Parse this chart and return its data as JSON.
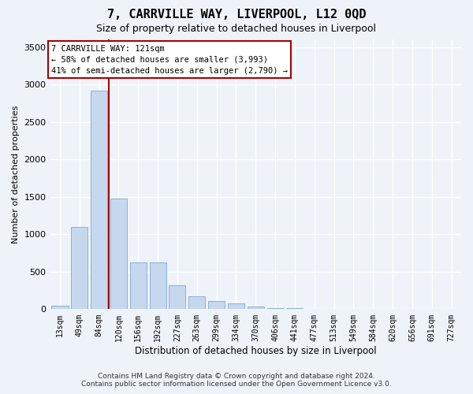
{
  "title": "7, CARRVILLE WAY, LIVERPOOL, L12 0QD",
  "subtitle": "Size of property relative to detached houses in Liverpool",
  "xlabel": "Distribution of detached houses by size in Liverpool",
  "ylabel": "Number of detached properties",
  "footer_line1": "Contains HM Land Registry data © Crown copyright and database right 2024.",
  "footer_line2": "Contains public sector information licensed under the Open Government Licence v3.0.",
  "annotation_line1": "7 CARRVILLE WAY: 121sqm",
  "annotation_line2": "← 58% of detached houses are smaller (3,993)",
  "annotation_line3": "41% of semi-detached houses are larger (2,790) →",
  "bin_labels": [
    "13sqm",
    "49sqm",
    "84sqm",
    "120sqm",
    "156sqm",
    "192sqm",
    "227sqm",
    "263sqm",
    "299sqm",
    "334sqm",
    "370sqm",
    "406sqm",
    "441sqm",
    "477sqm",
    "513sqm",
    "549sqm",
    "584sqm",
    "620sqm",
    "656sqm",
    "691sqm",
    "727sqm"
  ],
  "bar_values": [
    50,
    1100,
    2920,
    1480,
    630,
    630,
    320,
    175,
    110,
    80,
    40,
    20,
    10,
    5,
    2,
    1,
    0,
    0,
    0,
    0,
    0
  ],
  "bar_color": "#c5d8ee",
  "bar_edgecolor": "#7aaad0",
  "vline_color": "#aa0000",
  "vline_x": 2.5,
  "background_color": "#eef3fa",
  "grid_color": "#ffffff",
  "ylim": [
    0,
    3600
  ],
  "yticks": [
    0,
    500,
    1000,
    1500,
    2000,
    2500,
    3000,
    3500
  ],
  "title_fontsize": 11,
  "subtitle_fontsize": 9,
  "ylabel_fontsize": 8,
  "xlabel_fontsize": 8.5,
  "tick_fontsize": 8,
  "xtick_fontsize": 7,
  "annotation_fontsize": 7.5,
  "footer_fontsize": 6.5
}
